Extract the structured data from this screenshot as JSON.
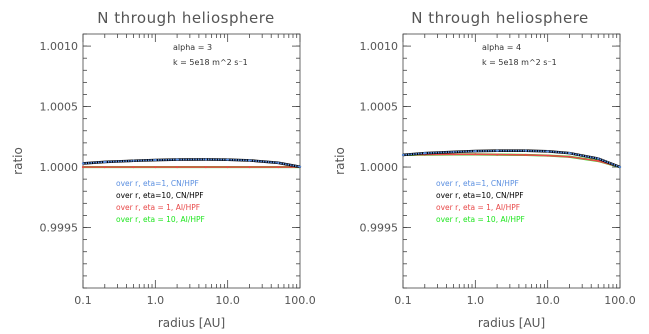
{
  "chart_data": [
    {
      "type": "line",
      "title": "N through heliosphere",
      "xlabel": "radius [AU]",
      "ylabel": "ratio",
      "xscale": "log",
      "xlim": [
        0.1,
        100.0
      ],
      "ylim": [
        0.999,
        1.0011
      ],
      "xticklabels": [
        "0.1",
        "1.0",
        "10.0",
        "100.0"
      ],
      "yticklabels": [
        "0.9995",
        "1.0000",
        "1.0005",
        "1.0010"
      ],
      "annotations": [
        "alpha = 3",
        "k = 5e18 m^2 s^-1"
      ],
      "annotation_display": [
        "alpha = 3",
        "k = 5e18 m^2 s⁻1"
      ],
      "series": [
        {
          "name": "over r, eta=1, CN/HPF",
          "color": "#5b8fe0",
          "x": [
            0.1,
            0.2,
            0.5,
            1,
            2,
            5,
            10,
            20,
            50,
            100
          ],
          "y": [
            1.00003,
            1.000042,
            1.000052,
            1.000058,
            1.000062,
            1.000063,
            1.000061,
            1.000055,
            1.000035,
            1.000002
          ]
        },
        {
          "name": "over r, eta=10, CN/HPF",
          "color": "#000000",
          "x": [
            0.1,
            0.2,
            0.5,
            1,
            2,
            5,
            10,
            20,
            50,
            100
          ],
          "y": [
            1.00003,
            1.000042,
            1.000052,
            1.000058,
            1.000062,
            1.000063,
            1.000061,
            1.000055,
            1.000035,
            1.000002
          ]
        },
        {
          "name": "over r, eta = 1, AI/HPF",
          "color": "#e84a4a",
          "x": [
            0.1,
            0.2,
            0.5,
            1,
            2,
            5,
            10,
            20,
            50,
            100
          ],
          "y": [
            1.0,
            1.0,
            1.0,
            1.0,
            1.0,
            1.0,
            1.0,
            1.0,
            1.0,
            1.0
          ]
        },
        {
          "name": "over r, eta = 10, AI/HPF",
          "color": "#22e622",
          "x": [
            0.1,
            0.2,
            0.5,
            1,
            2,
            5,
            10,
            20,
            50,
            100
          ],
          "y": [
            1.0,
            1.0,
            1.0,
            1.0,
            1.0,
            1.0,
            1.0,
            1.0,
            1.0,
            1.0
          ]
        }
      ]
    },
    {
      "type": "line",
      "title": "N through heliosphere",
      "xlabel": "radius [AU]",
      "ylabel": "ratio",
      "xscale": "log",
      "xlim": [
        0.1,
        100.0
      ],
      "ylim": [
        0.999,
        1.0011
      ],
      "xticklabels": [
        "0.1",
        "1.0",
        "10.0",
        "100.0"
      ],
      "yticklabels": [
        "0.9995",
        "1.0000",
        "1.0005",
        "1.0010"
      ],
      "annotations": [
        "alpha = 4",
        "k = 5e18 m^2 s^-1"
      ],
      "annotation_display": [
        "alpha = 4",
        "k = 5e18 m^2 s⁻1"
      ],
      "series": [
        {
          "name": "over r, eta=1, CN/HPF",
          "color": "#5b8fe0",
          "x": [
            0.1,
            0.2,
            0.5,
            1,
            2,
            5,
            10,
            20,
            50,
            100
          ],
          "y": [
            1.0001,
            1.000115,
            1.000125,
            1.000132,
            1.000135,
            1.000135,
            1.00013,
            1.000115,
            1.00007,
            1.0
          ]
        },
        {
          "name": "over r, eta=10, CN/HPF",
          "color": "#000000",
          "x": [
            0.1,
            0.2,
            0.5,
            1,
            2,
            5,
            10,
            20,
            50,
            100
          ],
          "y": [
            1.0001,
            1.000115,
            1.000125,
            1.000132,
            1.000135,
            1.000135,
            1.00013,
            1.000115,
            1.00007,
            1.0
          ]
        },
        {
          "name": "over r, eta = 1, AI/HPF",
          "color": "#e84a4a",
          "x": [
            0.1,
            0.2,
            0.5,
            1,
            2,
            5,
            10,
            20,
            50,
            100
          ],
          "y": [
            1.0001,
            1.000103,
            1.000105,
            1.000105,
            1.000103,
            1.0001,
            1.000095,
            1.000085,
            1.00005,
            1.0
          ]
        },
        {
          "name": "over r, eta = 10, AI/HPF",
          "color": "#22e622",
          "x": [
            0.1,
            0.2,
            0.5,
            1,
            2,
            5,
            10,
            20,
            50,
            100
          ],
          "y": [
            1.0001,
            1.000103,
            1.000105,
            1.000105,
            1.000103,
            1.0001,
            1.000095,
            1.000085,
            1.00005,
            1.0
          ]
        }
      ]
    }
  ]
}
